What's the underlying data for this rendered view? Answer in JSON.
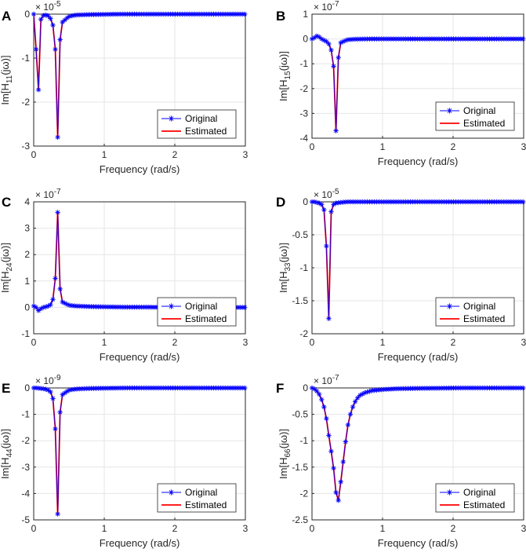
{
  "figure": {
    "colors": {
      "original": "#0000ff",
      "estimated": "#ff0000",
      "grid": "#e6e6e6",
      "axis": "#262626"
    }
  },
  "chart_data": [
    {
      "type": "line",
      "panel": "A",
      "xlabel": "Frequency (rad/s)",
      "ylabel_prefix": "Im[H",
      "ylabel_sub": "11",
      "ylabel_suffix": "(jω)]",
      "exponent_base": "× 10",
      "exponent": "-5",
      "xlim": [
        0,
        3
      ],
      "ylim": [
        -3,
        0
      ],
      "xticks": [
        0,
        1,
        2,
        3
      ],
      "xtick_labels": [
        "0",
        "1",
        "2",
        "3"
      ],
      "yticks": [
        -3,
        -2,
        -1,
        0
      ],
      "ytick_labels": [
        "-3",
        "-2",
        "-1",
        "0"
      ],
      "legend": [
        "Original",
        "Estimated"
      ],
      "series": [
        {
          "name": "Original",
          "x": [
            0,
            0.034,
            0.068,
            0.102,
            0.136,
            0.17,
            0.204,
            0.238,
            0.272,
            0.306,
            0.34,
            0.374,
            0.408,
            0.5,
            0.6,
            0.8,
            1.0,
            1.2,
            1.5,
            1.8,
            2.0,
            2.3,
            2.6,
            3.0
          ],
          "y": [
            0,
            -0.8,
            -1.72,
            -0.12,
            -0.03,
            -0.02,
            -0.04,
            -0.1,
            -0.25,
            -0.8,
            -2.8,
            -0.58,
            -0.18,
            -0.05,
            -0.02,
            -0.01,
            -0.005,
            0,
            0,
            0,
            0,
            0,
            0,
            0
          ]
        },
        {
          "name": "Estimated",
          "x": [
            0,
            0.034,
            0.068,
            0.102,
            0.136,
            0.17,
            0.204,
            0.238,
            0.272,
            0.306,
            0.34,
            0.374,
            0.408,
            0.5,
            0.6,
            0.8,
            1.0,
            1.2,
            1.5,
            1.8,
            2.0,
            2.3,
            2.6,
            3.0
          ],
          "y": [
            0,
            -0.8,
            -1.72,
            -0.12,
            -0.03,
            -0.02,
            -0.04,
            -0.1,
            -0.25,
            -0.8,
            -2.8,
            -0.58,
            -0.18,
            -0.05,
            -0.02,
            -0.01,
            -0.005,
            0,
            0,
            0,
            0,
            0,
            0,
            0
          ]
        }
      ]
    },
    {
      "type": "line",
      "panel": "B",
      "xlabel": "Frequency (rad/s)",
      "ylabel_prefix": "Im[H",
      "ylabel_sub": "15",
      "ylabel_suffix": "(jω)]",
      "exponent_base": "× 10",
      "exponent": "-7",
      "xlim": [
        0,
        3
      ],
      "ylim": [
        -4,
        1
      ],
      "xticks": [
        0,
        1,
        2,
        3
      ],
      "xtick_labels": [
        "0",
        "1",
        "2",
        "3"
      ],
      "yticks": [
        -4,
        -3,
        -2,
        -1,
        0,
        1
      ],
      "ytick_labels": [
        "-4",
        "-3",
        "-2",
        "-1",
        "0",
        "1"
      ],
      "legend": [
        "Original",
        "Estimated"
      ],
      "series": [
        {
          "name": "Original",
          "x": [
            0,
            0.034,
            0.068,
            0.102,
            0.136,
            0.17,
            0.204,
            0.238,
            0.272,
            0.306,
            0.34,
            0.374,
            0.408,
            0.5,
            0.6,
            0.8,
            1.0,
            1.3,
            1.6,
            2.0,
            2.4,
            2.7,
            3.0
          ],
          "y": [
            0,
            0.05,
            0.12,
            0.08,
            0,
            -0.05,
            -0.1,
            -0.2,
            -0.45,
            -1.1,
            -3.7,
            -0.75,
            -0.15,
            -0.03,
            -0.01,
            0,
            0,
            0,
            0,
            0,
            0,
            0,
            0
          ]
        },
        {
          "name": "Estimated",
          "x": [
            0,
            0.034,
            0.068,
            0.102,
            0.136,
            0.17,
            0.204,
            0.238,
            0.272,
            0.306,
            0.34,
            0.374,
            0.408,
            0.5,
            0.6,
            0.8,
            1.0,
            1.3,
            1.6,
            2.0,
            2.4,
            2.7,
            3.0
          ],
          "y": [
            0,
            0.05,
            0.12,
            0.08,
            0,
            -0.05,
            -0.1,
            -0.2,
            -0.45,
            -1.1,
            -3.7,
            -0.75,
            -0.15,
            -0.03,
            -0.01,
            0,
            0,
            0,
            0,
            0,
            0,
            0,
            0
          ]
        }
      ]
    },
    {
      "type": "line",
      "panel": "C",
      "xlabel": "Frequency (rad/s)",
      "ylabel_prefix": "Im[H",
      "ylabel_sub": "24",
      "ylabel_suffix": "(jω)]",
      "exponent_base": "× 10",
      "exponent": "-7",
      "xlim": [
        0,
        3
      ],
      "ylim": [
        -1,
        4
      ],
      "xticks": [
        0,
        1,
        2,
        3
      ],
      "xtick_labels": [
        "0",
        "1",
        "2",
        "3"
      ],
      "yticks": [
        -1,
        0,
        1,
        2,
        3,
        4
      ],
      "ytick_labels": [
        "-1",
        "0",
        "1",
        "2",
        "3",
        "4"
      ],
      "legend": [
        "Original",
        "Estimated"
      ],
      "series": [
        {
          "name": "Original",
          "x": [
            0,
            0.034,
            0.068,
            0.102,
            0.136,
            0.17,
            0.204,
            0.238,
            0.272,
            0.306,
            0.34,
            0.374,
            0.408,
            0.5,
            0.6,
            0.8,
            1.0,
            1.3,
            1.6,
            2.0,
            2.4,
            2.7,
            3.0
          ],
          "y": [
            0.05,
            0,
            -0.12,
            -0.05,
            0,
            0.02,
            0.05,
            0.1,
            0.3,
            1.1,
            3.6,
            0.7,
            0.2,
            0.08,
            0.05,
            0.03,
            0.02,
            0.01,
            0.01,
            0,
            0,
            0,
            0
          ]
        },
        {
          "name": "Estimated",
          "x": [
            0,
            0.034,
            0.068,
            0.102,
            0.136,
            0.17,
            0.204,
            0.238,
            0.272,
            0.306,
            0.34,
            0.374,
            0.408,
            0.5,
            0.6,
            0.8,
            1.0,
            1.3,
            1.6,
            2.0,
            2.4,
            2.7,
            3.0
          ],
          "y": [
            0.05,
            0,
            -0.12,
            -0.05,
            0,
            0.02,
            0.05,
            0.1,
            0.3,
            1.1,
            3.6,
            0.7,
            0.2,
            0.08,
            0.05,
            0.03,
            0.02,
            0.01,
            0.01,
            0,
            0,
            0,
            0
          ]
        }
      ]
    },
    {
      "type": "line",
      "panel": "D",
      "xlabel": "Frequency (rad/s)",
      "ylabel_prefix": "Im[H",
      "ylabel_sub": "33",
      "ylabel_suffix": "(jω)]",
      "exponent_base": "× 10",
      "exponent": "-5",
      "xlim": [
        0,
        3
      ],
      "ylim": [
        -2,
        0
      ],
      "xticks": [
        0,
        1,
        2,
        3
      ],
      "xtick_labels": [
        "0",
        "1",
        "2",
        "3"
      ],
      "yticks": [
        -2,
        -1.5,
        -1,
        -0.5,
        0
      ],
      "ytick_labels": [
        "-2",
        "-1.5",
        "-1",
        "-0.5",
        "0"
      ],
      "legend": [
        "Original",
        "Estimated"
      ],
      "series": [
        {
          "name": "Original",
          "x": [
            0,
            0.034,
            0.068,
            0.102,
            0.136,
            0.17,
            0.204,
            0.238,
            0.272,
            0.306,
            0.34,
            0.4,
            0.5,
            0.6,
            0.8,
            1.0,
            1.3,
            1.6,
            2.0,
            2.4,
            2.7,
            3.0
          ],
          "y": [
            0,
            0,
            -0.01,
            -0.02,
            -0.04,
            -0.12,
            -0.67,
            -1.77,
            -0.15,
            -0.04,
            -0.02,
            -0.01,
            0,
            0,
            0,
            0,
            0,
            0,
            0,
            0,
            0,
            0
          ]
        },
        {
          "name": "Estimated",
          "x": [
            0,
            0.034,
            0.068,
            0.102,
            0.136,
            0.17,
            0.204,
            0.238,
            0.272,
            0.306,
            0.34,
            0.4,
            0.5,
            0.6,
            0.8,
            1.0,
            1.3,
            1.6,
            2.0,
            2.4,
            2.7,
            3.0
          ],
          "y": [
            0,
            0,
            -0.01,
            -0.02,
            -0.04,
            -0.12,
            -0.67,
            -1.77,
            -0.15,
            -0.04,
            -0.02,
            -0.01,
            0,
            0,
            0,
            0,
            0,
            0,
            0,
            0,
            0,
            0
          ]
        }
      ]
    },
    {
      "type": "line",
      "panel": "E",
      "xlabel": "Frequency (rad/s)",
      "ylabel_prefix": "Im[H",
      "ylabel_sub": "44",
      "ylabel_suffix": "(jω)]",
      "exponent_base": "× 10",
      "exponent": "-9",
      "xlim": [
        0,
        3
      ],
      "ylim": [
        -5,
        0
      ],
      "xticks": [
        0,
        1,
        2,
        3
      ],
      "xtick_labels": [
        "0",
        "1",
        "2",
        "3"
      ],
      "yticks": [
        -5,
        -4,
        -3,
        -2,
        -1,
        0
      ],
      "ytick_labels": [
        "-5",
        "-4",
        "-3",
        "-2",
        "-1",
        "0"
      ],
      "legend": [
        "Original",
        "Estimated"
      ],
      "series": [
        {
          "name": "Original",
          "x": [
            0,
            0.034,
            0.068,
            0.102,
            0.136,
            0.17,
            0.204,
            0.238,
            0.272,
            0.306,
            0.34,
            0.374,
            0.408,
            0.5,
            0.6,
            0.8,
            1.0,
            1.3,
            1.6,
            2.0,
            2.4,
            2.7,
            3.0
          ],
          "y": [
            0,
            0,
            -0.01,
            -0.02,
            -0.03,
            -0.05,
            -0.08,
            -0.15,
            -0.4,
            -1.55,
            -4.78,
            -0.92,
            -0.25,
            -0.08,
            -0.04,
            -0.02,
            -0.01,
            0,
            0,
            0,
            0,
            0,
            0
          ]
        },
        {
          "name": "Estimated",
          "x": [
            0,
            0.034,
            0.068,
            0.102,
            0.136,
            0.17,
            0.204,
            0.238,
            0.272,
            0.306,
            0.34,
            0.374,
            0.408,
            0.5,
            0.6,
            0.8,
            1.0,
            1.3,
            1.6,
            2.0,
            2.4,
            2.7,
            3.0
          ],
          "y": [
            0,
            0,
            -0.01,
            -0.02,
            -0.03,
            -0.05,
            -0.08,
            -0.15,
            -0.4,
            -1.55,
            -4.78,
            -0.92,
            -0.25,
            -0.08,
            -0.04,
            -0.02,
            -0.01,
            0,
            0,
            0,
            0,
            0,
            0
          ]
        }
      ]
    },
    {
      "type": "line",
      "panel": "F",
      "xlabel": "Frequency (rad/s)",
      "ylabel_prefix": "Im[H",
      "ylabel_sub": "66",
      "ylabel_suffix": "(jω)]",
      "exponent_base": "× 10",
      "exponent": "-7",
      "xlim": [
        0,
        3
      ],
      "ylim": [
        -2.5,
        0
      ],
      "xticks": [
        0,
        1,
        2,
        3
      ],
      "xtick_labels": [
        "0",
        "1",
        "2",
        "3"
      ],
      "yticks": [
        -2.5,
        -2,
        -1.5,
        -1,
        -0.5,
        0
      ],
      "ytick_labels": [
        "-2.5",
        "-2",
        "-1.5",
        "-1",
        "-0.5",
        "0"
      ],
      "legend": [
        "Original",
        "Estimated"
      ],
      "series": [
        {
          "name": "Original",
          "x": [
            0,
            0.034,
            0.068,
            0.102,
            0.136,
            0.17,
            0.204,
            0.238,
            0.272,
            0.306,
            0.34,
            0.374,
            0.408,
            0.442,
            0.476,
            0.51,
            0.544,
            0.578,
            0.612,
            0.646,
            0.68,
            0.75,
            0.85,
            1.0,
            1.2,
            1.5,
            1.8,
            2.1,
            2.4,
            2.7,
            3.0
          ],
          "y": [
            0,
            -0.02,
            -0.06,
            -0.12,
            -0.22,
            -0.36,
            -0.58,
            -0.9,
            -1.2,
            -1.52,
            -1.98,
            -2.13,
            -1.78,
            -1.4,
            -1.02,
            -0.7,
            -0.5,
            -0.36,
            -0.26,
            -0.19,
            -0.14,
            -0.09,
            -0.05,
            -0.03,
            -0.015,
            -0.008,
            -0.004,
            0,
            0,
            0,
            0
          ]
        },
        {
          "name": "Estimated",
          "x": [
            0,
            0.034,
            0.068,
            0.102,
            0.136,
            0.17,
            0.204,
            0.238,
            0.272,
            0.306,
            0.34,
            0.374,
            0.408,
            0.442,
            0.476,
            0.51,
            0.544,
            0.578,
            0.612,
            0.646,
            0.68,
            0.75,
            0.85,
            1.0,
            1.2,
            1.5,
            1.8,
            2.1,
            2.4,
            2.7,
            3.0
          ],
          "y": [
            0,
            -0.02,
            -0.06,
            -0.12,
            -0.22,
            -0.36,
            -0.58,
            -0.9,
            -1.2,
            -1.52,
            -1.98,
            -2.13,
            -1.78,
            -1.4,
            -1.02,
            -0.7,
            -0.5,
            -0.36,
            -0.26,
            -0.19,
            -0.14,
            -0.09,
            -0.05,
            -0.03,
            -0.015,
            -0.008,
            -0.004,
            0,
            0,
            0,
            0
          ]
        }
      ]
    }
  ]
}
